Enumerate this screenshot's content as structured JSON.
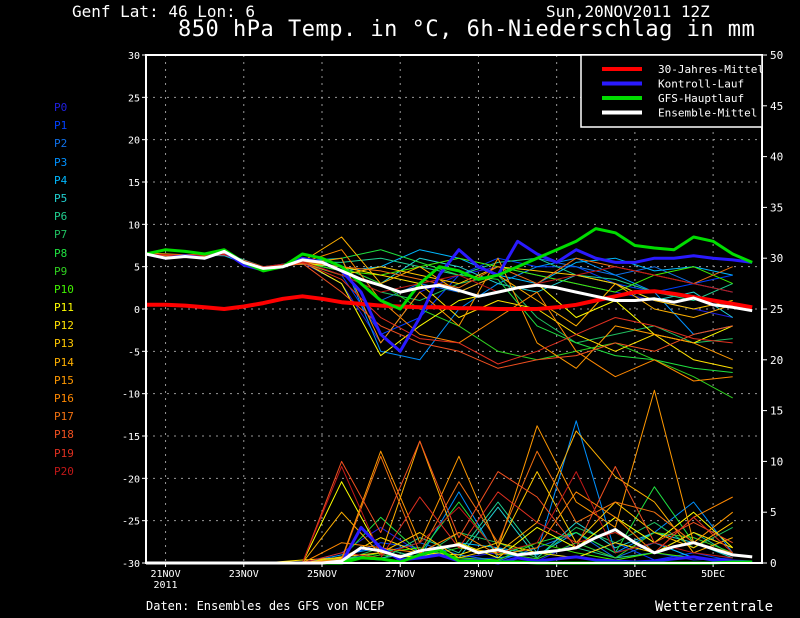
{
  "header": {
    "location": "Genf  Lat: 46 Lon: 6",
    "run_date": "Sun,20NOV2011 12Z",
    "title": "850 hPa Temp. in °C, 6h-Niederschlag in mm"
  },
  "footer": {
    "source": "Daten: Ensembles des GFS von NCEP",
    "brand": "Wetterzentrale"
  },
  "members_legend": [
    {
      "label": "P0",
      "color": "#2020e0"
    },
    {
      "label": "P1",
      "color": "#0040ff"
    },
    {
      "label": "P2",
      "color": "#1070e8"
    },
    {
      "label": "P3",
      "color": "#0090ff"
    },
    {
      "label": "P4",
      "color": "#00b8ff"
    },
    {
      "label": "P5",
      "color": "#20d0d0"
    },
    {
      "label": "P6",
      "color": "#20d090"
    },
    {
      "label": "P7",
      "color": "#20c060"
    },
    {
      "label": "P8",
      "color": "#20e040"
    },
    {
      "label": "P9",
      "color": "#30d020"
    },
    {
      "label": "P10",
      "color": "#40f000"
    },
    {
      "label": "P11",
      "color": "#ffff00"
    },
    {
      "label": "P12",
      "color": "#ffe000"
    },
    {
      "label": "P13",
      "color": "#ffc800"
    },
    {
      "label": "P14",
      "color": "#ffb000"
    },
    {
      "label": "P15",
      "color": "#ff9800"
    },
    {
      "label": "P16",
      "color": "#ff8800"
    },
    {
      "label": "P17",
      "color": "#f07010"
    },
    {
      "label": "P18",
      "color": "#f05020"
    },
    {
      "label": "P19",
      "color": "#e03020"
    },
    {
      "label": "P20",
      "color": "#c01818"
    }
  ],
  "chart_data": {
    "type": "line",
    "title": "850 hPa Temp. in °C, 6h-Niederschlag in mm",
    "x_unit": "hours since 20NOV2011 12Z",
    "xlim": [
      0,
      378
    ],
    "ylim_left": [
      -30,
      30
    ],
    "ylim_right": [
      0,
      50
    ],
    "left_ticks": [
      "30",
      "25",
      "20",
      "15",
      "10",
      "5",
      "0",
      "-5",
      "-10",
      "-15",
      "-20",
      "-25",
      "-30"
    ],
    "right_ticks": [
      "50",
      "45",
      "40",
      "35",
      "30",
      "25",
      "20",
      "15",
      "10",
      "5",
      "0"
    ],
    "x_ticks": [
      {
        "hour": 12,
        "label": "21NOV",
        "sub": "2011"
      },
      {
        "hour": 60,
        "label": "23NOV"
      },
      {
        "hour": 108,
        "label": "25NOV"
      },
      {
        "hour": 156,
        "label": "27NOV"
      },
      {
        "hour": 204,
        "label": "29NOV"
      },
      {
        "hour": 252,
        "label": "1DEC"
      },
      {
        "hour": 300,
        "label": "3DEC"
      },
      {
        "hour": 348,
        "label": "5DEC"
      }
    ],
    "grid": true,
    "legend_position": "top-right",
    "legend": [
      {
        "label": "30-Jahres-Mittel",
        "color": "#ff0000"
      },
      {
        "label": "Kontroll-Lauf",
        "color": "#2a1aff"
      },
      {
        "label": "GFS-Hauptlauf",
        "color": "#00dd00"
      },
      {
        "label": "Ensemble-Mittel",
        "color": "#ffffff"
      }
    ],
    "main_step_hours": 12,
    "main_series": {
      "climate": [
        0.5,
        0.5,
        0.4,
        0.2,
        0,
        0.3,
        0.7,
        1.2,
        1.5,
        1.2,
        0.8,
        0.6,
        0.4,
        0.3,
        0.2,
        0.2,
        0.1,
        0.1,
        0,
        0,
        0,
        0.2,
        0.5,
        1.0,
        1.5,
        2.0,
        2.1,
        1.8,
        1.4,
        1.0,
        0.6,
        0.2
      ],
      "control": [
        6.5,
        6.0,
        6.3,
        6.0,
        6.8,
        5.2,
        4.6,
        5.0,
        6.0,
        5.5,
        4.5,
        2.0,
        -3.0,
        -5.0,
        -1.0,
        4.0,
        7.0,
        5.0,
        4.0,
        8.0,
        6.5,
        5.5,
        7.0,
        6.0,
        5.5,
        5.5,
        6.0,
        6.0,
        6.3,
        6.0,
        5.8,
        5.5
      ],
      "gfs": [
        6.5,
        7.0,
        6.8,
        6.5,
        7.0,
        5.5,
        4.5,
        5.0,
        6.5,
        6.0,
        5.0,
        3.0,
        1.0,
        0.0,
        3.0,
        5.0,
        4.5,
        3.5,
        4.0,
        5.0,
        6.0,
        7.0,
        8.0,
        9.5,
        9.0,
        7.5,
        7.2,
        7.0,
        8.5,
        8.0,
        6.5,
        5.5
      ],
      "mean_temp": [
        6.5,
        6.0,
        6.2,
        6.0,
        6.8,
        5.5,
        4.8,
        5.0,
        5.8,
        5.5,
        4.5,
        3.5,
        2.8,
        2.0,
        2.5,
        2.8,
        2.2,
        1.5,
        2.0,
        2.5,
        2.8,
        2.5,
        2.0,
        1.5,
        1.0,
        1.0,
        1.2,
        0.8,
        1.3,
        0.5,
        0.2,
        -0.2
      ],
      "mean_precip": [
        0,
        0,
        0,
        0,
        0,
        0,
        0,
        0,
        0,
        0,
        0.2,
        1.5,
        1.2,
        0.6,
        1.2,
        1.5,
        1.8,
        1.0,
        1.3,
        0.8,
        1.0,
        1.2,
        1.5,
        2.5,
        3.3,
        2.0,
        1.0,
        1.6,
        2.0,
        1.4,
        0.8,
        0.6
      ],
      "control_precip": [
        0,
        0,
        0,
        0,
        0,
        0,
        0,
        0,
        0,
        0,
        0,
        3.5,
        1.5,
        0.3,
        0.5,
        0.8,
        0.2,
        0.3,
        0,
        0.5,
        0.2,
        0.4,
        0.6,
        0.3,
        0.2,
        0.1,
        0.2,
        0.4,
        0.6,
        0.3,
        0.2,
        0.1
      ],
      "gfs_precip": [
        0,
        0,
        0,
        0,
        0,
        0,
        0,
        0,
        0,
        0,
        0,
        0.5,
        0.4,
        0.1,
        0.8,
        1.3,
        0.2,
        0.2,
        0.1,
        0.1,
        0,
        0,
        0,
        0,
        0,
        0,
        0,
        0,
        0,
        0,
        0.1,
        0.1
      ]
    },
    "member_step_hours": 24,
    "members_temp": [
      [
        6.5,
        6.3,
        6.5,
        4.8,
        5.5,
        3.0,
        -4.0,
        2.0,
        4.0,
        5.0,
        4.0,
        3.0,
        2.0,
        1.0,
        0.0,
        -1.0
      ],
      [
        6.5,
        6.2,
        6.4,
        5.0,
        5.6,
        4.0,
        -3.0,
        -1.0,
        4.0,
        6.0,
        5.0,
        5.0,
        3.0,
        2.0,
        3.0,
        4.0
      ],
      [
        6.4,
        6.3,
        6.6,
        4.7,
        5.4,
        5.0,
        1.0,
        3.0,
        2.0,
        4.0,
        6.0,
        5.0,
        4.0,
        5.0,
        3.0,
        2.0
      ],
      [
        6.6,
        6.1,
        6.5,
        4.9,
        5.7,
        6.0,
        -5.0,
        -6.0,
        0.0,
        3.0,
        5.0,
        6.0,
        4.0,
        2.0,
        -3.0,
        -2.0
      ],
      [
        6.5,
        6.4,
        6.3,
        4.6,
        5.5,
        4.5,
        5.0,
        7.0,
        6.0,
        4.0,
        3.0,
        5.5,
        6.0,
        4.5,
        5.0,
        4.0
      ],
      [
        6.5,
        6.2,
        6.6,
        5.0,
        5.3,
        5.0,
        3.0,
        6.0,
        5.0,
        3.0,
        2.0,
        4.0,
        3.0,
        1.0,
        2.0,
        -1.0
      ],
      [
        6.4,
        6.3,
        6.5,
        4.8,
        5.6,
        5.5,
        6.0,
        5.0,
        4.0,
        5.5,
        6.0,
        4.0,
        3.5,
        2.0,
        1.0,
        3.0
      ],
      [
        6.6,
        6.2,
        6.4,
        4.9,
        5.4,
        4.0,
        2.0,
        1.0,
        3.0,
        4.0,
        -1.0,
        -4.0,
        -3.0,
        -2.0,
        -4.0,
        -3.5
      ],
      [
        6.5,
        6.3,
        6.6,
        4.7,
        5.5,
        6.0,
        7.0,
        5.5,
        4.0,
        3.5,
        -2.0,
        -4.0,
        -5.5,
        -6.0,
        -7.0,
        -7.5
      ],
      [
        6.5,
        6.1,
        6.5,
        4.8,
        5.7,
        5.0,
        3.0,
        0.0,
        -2.0,
        -5.0,
        -6.0,
        -5.0,
        -4.0,
        -6.0,
        -8.0,
        -10.5
      ],
      [
        6.4,
        6.3,
        6.4,
        5.0,
        5.5,
        4.5,
        4.0,
        5.0,
        6.0,
        5.0,
        4.0,
        3.0,
        2.0,
        4.0,
        5.0,
        3.0
      ],
      [
        6.5,
        6.2,
        6.6,
        4.6,
        5.6,
        3.0,
        -5.5,
        -2.0,
        1.0,
        2.0,
        3.0,
        -1.0,
        1.0,
        -3.0,
        -4.0,
        -2.0
      ],
      [
        6.6,
        6.4,
        6.5,
        4.8,
        5.4,
        5.0,
        4.0,
        3.0,
        -1.0,
        1.0,
        0.0,
        -3.0,
        -5.0,
        -3.0,
        -6.0,
        -7.0
      ],
      [
        6.5,
        6.3,
        6.4,
        4.9,
        5.5,
        4.0,
        5.0,
        4.0,
        3.0,
        5.0,
        4.5,
        4.0,
        3.0,
        1.0,
        0.0,
        1.0
      ],
      [
        6.4,
        6.2,
        6.6,
        4.7,
        5.6,
        8.5,
        3.0,
        5.0,
        2.0,
        4.0,
        1.0,
        -2.0,
        3.0,
        0.0,
        -1.0,
        0.5
      ],
      [
        6.5,
        6.3,
        6.5,
        5.0,
        5.3,
        6.0,
        -4.0,
        2.0,
        -2.0,
        6.0,
        -4.0,
        -7.0,
        -2.0,
        -3.0,
        -4.0,
        -6.0
      ],
      [
        6.5,
        6.1,
        6.4,
        4.8,
        5.5,
        7.0,
        1.0,
        -3.0,
        -4.0,
        -1.0,
        2.0,
        -5.0,
        -8.0,
        -6.0,
        -8.5,
        -8.0
      ],
      [
        6.6,
        6.3,
        6.5,
        4.9,
        5.6,
        5.0,
        4.5,
        3.5,
        2.5,
        5.0,
        3.0,
        6.0,
        5.0,
        4.0,
        3.0,
        5.0
      ],
      [
        6.5,
        6.2,
        6.6,
        4.6,
        5.4,
        2.0,
        -2.0,
        -4.0,
        -5.0,
        -7.0,
        -6.0,
        -5.5,
        -4.0,
        -5.0,
        -3.0,
        -2.0
      ],
      [
        6.4,
        6.4,
        6.5,
        4.8,
        5.5,
        3.5,
        -1.0,
        -3.5,
        -4.0,
        -6.5,
        -5.0,
        -3.0,
        -1.0,
        -2.0,
        -3.5,
        -4.0
      ],
      [
        6.5,
        6.3,
        6.4,
        5.0,
        5.6,
        4.0,
        2.0,
        3.0,
        4.0,
        2.0,
        3.0,
        4.0,
        5.0,
        4.0,
        3.0,
        2.0
      ]
    ],
    "members_precip": [
      [
        0,
        0,
        0,
        0,
        0,
        1.0,
        3.5,
        1.0,
        0.5,
        1.0,
        0.2,
        2.0,
        0.5,
        1.0,
        0.3,
        0.5
      ],
      [
        0,
        0,
        0,
        0,
        0,
        0.5,
        2.0,
        1.5,
        0.3,
        0.5,
        1.0,
        0.5,
        2.0,
        0.3,
        1.0,
        0.2
      ],
      [
        0,
        0,
        0,
        0,
        0,
        0.3,
        1.0,
        2.0,
        0.8,
        0.2,
        1.5,
        3.0,
        0.5,
        2.0,
        0.5,
        0.2
      ],
      [
        0,
        0,
        0,
        0,
        0,
        0.8,
        1.5,
        0.5,
        7.0,
        0.5,
        1.0,
        14.0,
        1.0,
        3.0,
        6.0,
        1.0
      ],
      [
        0,
        0,
        0,
        0,
        0,
        0.2,
        1.0,
        0.5,
        2.0,
        1.5,
        0.8,
        3.0,
        1.0,
        2.0,
        0.5,
        0.3
      ],
      [
        0,
        0,
        0,
        0,
        0,
        0.4,
        0.5,
        1.0,
        0.5,
        5.5,
        0.5,
        4.0,
        1.5,
        3.0,
        2.0,
        0.5
      ],
      [
        0,
        0,
        0,
        0,
        0,
        0.6,
        0.3,
        2.5,
        1.0,
        6.0,
        1.0,
        1.5,
        0.5,
        1.0,
        3.0,
        0.8
      ],
      [
        0,
        0,
        0,
        0,
        0,
        0.2,
        1.5,
        0.5,
        3.0,
        2.0,
        0.5,
        3.5,
        2.0,
        4.0,
        1.5,
        3.5
      ],
      [
        0,
        0,
        0,
        0,
        0,
        0.5,
        4.5,
        1.0,
        6.0,
        0.8,
        2.0,
        3.0,
        1.0,
        7.5,
        2.0,
        1.0
      ],
      [
        0,
        0,
        0,
        0,
        0,
        0.1,
        0.8,
        0.5,
        1.5,
        1.0,
        0.4,
        2.0,
        0.5,
        3.0,
        2.5,
        1.0
      ],
      [
        0,
        0,
        0,
        0,
        0,
        0.2,
        1.0,
        1.5,
        0.5,
        0.3,
        2.0,
        1.0,
        0.3,
        1.0,
        0.5,
        0.2
      ],
      [
        0,
        0,
        0,
        0,
        0,
        8.0,
        1.0,
        0.5,
        2.0,
        0.5,
        3.5,
        1.5,
        4.5,
        2.0,
        5.0,
        1.5
      ],
      [
        0,
        0,
        0,
        0,
        0.3,
        0.5,
        2.5,
        1.0,
        0.8,
        2.0,
        1.0,
        0.5,
        2.0,
        1.0,
        3.0,
        1.5
      ],
      [
        0,
        0,
        0,
        0,
        0,
        0.6,
        1.0,
        3.0,
        0.5,
        1.5,
        9.0,
        2.0,
        6.0,
        3.0,
        1.5,
        4.0
      ],
      [
        0,
        0,
        0,
        0,
        0,
        5.0,
        0.8,
        12.0,
        1.5,
        1.0,
        4.0,
        13.0,
        8.5,
        6.0,
        1.0,
        2.5
      ],
      [
        0,
        0,
        0,
        0,
        0,
        0.4,
        11.0,
        2.0,
        10.5,
        1.5,
        13.5,
        6.0,
        3.5,
        17.0,
        2.0,
        5.0
      ],
      [
        0,
        0,
        0,
        0,
        0,
        2.0,
        1.5,
        1.0,
        3.0,
        0.8,
        1.5,
        7.0,
        4.5,
        1.0,
        4.5,
        6.5
      ],
      [
        0,
        0,
        0,
        0,
        0,
        0.3,
        10.5,
        1.0,
        8.0,
        2.0,
        11.0,
        4.0,
        6.0,
        5.0,
        2.0,
        1.0
      ],
      [
        0,
        0,
        0,
        0,
        0,
        10.0,
        3.0,
        12.0,
        2.5,
        9.0,
        6.5,
        1.5,
        9.5,
        2.0,
        4.0,
        2.0
      ],
      [
        0,
        0,
        0,
        0,
        0,
        1.0,
        0.5,
        6.5,
        1.5,
        7.0,
        4.0,
        2.0,
        3.0,
        1.0,
        4.5,
        1.0
      ],
      [
        0,
        0,
        0,
        0,
        0,
        9.5,
        0.8,
        2.0,
        5.5,
        1.0,
        2.0,
        9.0,
        1.0,
        2.0,
        1.0,
        0.5
      ]
    ]
  }
}
